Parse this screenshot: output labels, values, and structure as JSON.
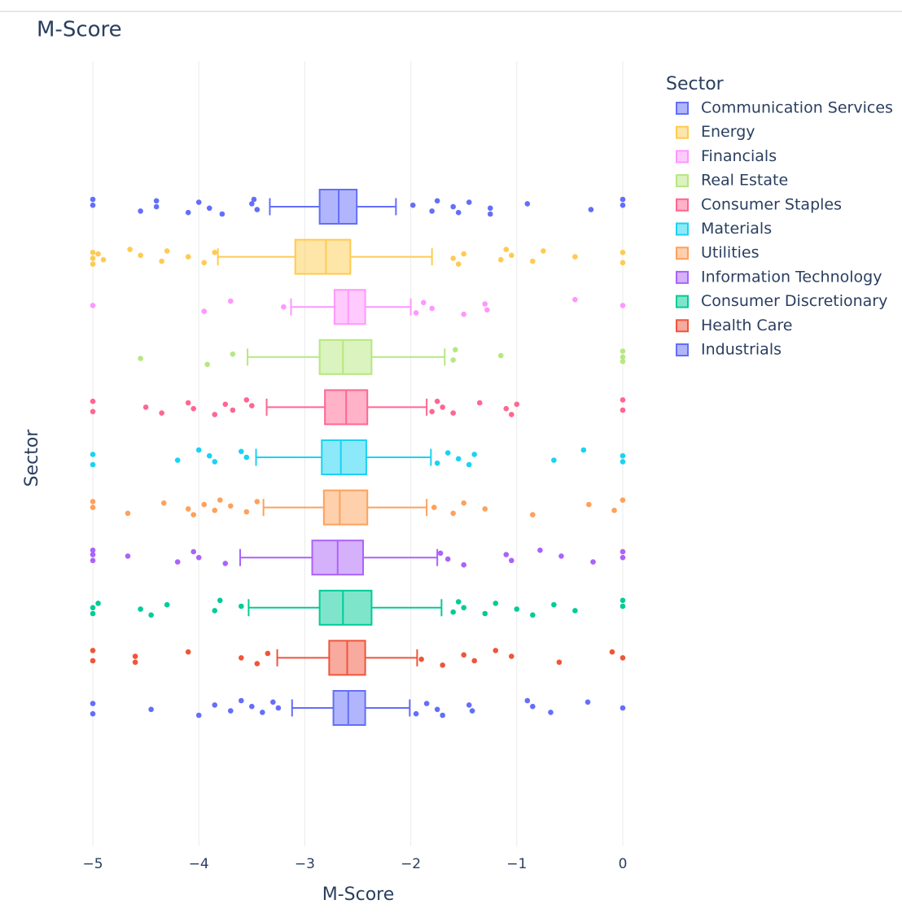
{
  "chart_data": {
    "type": "box",
    "orientation": "h",
    "title": "M-Score",
    "xlabel": "M-Score",
    "ylabel": "Sector",
    "legend_title": "Sector",
    "legend": "right",
    "xlim": [
      -5.2,
      0.1
    ],
    "xticks": [
      {
        "value": -5,
        "label": "−5"
      },
      {
        "value": -4,
        "label": "−4"
      },
      {
        "value": -3,
        "label": "−3"
      },
      {
        "value": -2,
        "label": "−2"
      },
      {
        "value": -1,
        "label": "−1"
      },
      0
    ],
    "grid": true,
    "series": [
      {
        "name": "Communication Services",
        "color": "#636efa",
        "lowerfence": -3.33,
        "q1": -2.86,
        "median": -2.68,
        "q3": -2.51,
        "upperfence": -2.14,
        "outliers": [
          -5,
          -5,
          -4.55,
          -4.4,
          -4.4,
          -4.1,
          -4.0,
          -3.9,
          -3.78,
          -3.5,
          -3.45,
          -3.48,
          -1.98,
          -1.8,
          -1.75,
          -1.6,
          -1.55,
          -1.45,
          -1.25,
          -1.25,
          -0.9,
          -0.3,
          0,
          0
        ]
      },
      {
        "name": "Energy",
        "color": "#FECB52",
        "lowerfence": -3.82,
        "q1": -3.09,
        "median": -2.8,
        "q3": -2.57,
        "upperfence": -1.8,
        "outliers": [
          -5,
          -5,
          -5,
          -4.95,
          -4.9,
          -4.65,
          -4.55,
          -4.35,
          -4.3,
          -4.1,
          -3.95,
          -3.85,
          -1.6,
          -1.55,
          -1.5,
          -1.15,
          -1.1,
          -1.05,
          -0.85,
          -0.75,
          -0.45,
          0,
          0
        ]
      },
      {
        "name": "Financials",
        "color": "#FF97FF",
        "lowerfence": -3.13,
        "q1": -2.72,
        "median": -2.59,
        "q3": -2.43,
        "upperfence": -2.0,
        "outliers": [
          -5,
          -3.95,
          -3.7,
          -3.2,
          -1.95,
          -1.88,
          -1.8,
          -1.5,
          -1.3,
          -1.28,
          -0.45,
          0
        ]
      },
      {
        "name": "Real Estate",
        "color": "#B6E880",
        "lowerfence": -3.54,
        "q1": -2.86,
        "median": -2.64,
        "q3": -2.37,
        "upperfence": -1.68,
        "outliers": [
          -4.55,
          -3.92,
          -3.68,
          -1.6,
          -1.58,
          -1.15,
          0,
          0,
          0
        ]
      },
      {
        "name": "Consumer Staples",
        "color": "#FF6692",
        "lowerfence": -3.36,
        "q1": -2.81,
        "median": -2.61,
        "q3": -2.41,
        "upperfence": -1.85,
        "outliers": [
          -5,
          -5,
          -4.5,
          -4.35,
          -4.1,
          -4.05,
          -3.85,
          -3.75,
          -3.68,
          -3.55,
          -3.5,
          -1.8,
          -1.75,
          -1.7,
          -1.6,
          -1.35,
          -1.1,
          -1.05,
          -1.0,
          0,
          0
        ]
      },
      {
        "name": "Materials",
        "color": "#19d3f3",
        "lowerfence": -3.46,
        "q1": -2.84,
        "median": -2.66,
        "q3": -2.42,
        "upperfence": -1.81,
        "outliers": [
          -5,
          -5,
          -4.2,
          -4.0,
          -3.9,
          -3.85,
          -3.6,
          -3.55,
          -1.75,
          -1.65,
          -1.55,
          -1.45,
          -1.4,
          -0.65,
          -0.37,
          0,
          0
        ]
      },
      {
        "name": "Utilities",
        "color": "#FFA15A",
        "lowerfence": -3.39,
        "q1": -2.82,
        "median": -2.67,
        "q3": -2.41,
        "upperfence": -1.85,
        "outliers": [
          -5,
          -5,
          -4.67,
          -4.33,
          -4.1,
          -4.05,
          -3.95,
          -3.85,
          -3.8,
          -3.7,
          -3.55,
          -3.45,
          -1.78,
          -1.6,
          -1.5,
          -1.3,
          -0.85,
          -0.32,
          -0.08,
          0
        ]
      },
      {
        "name": "Information Technology",
        "color": "#ab63fa",
        "lowerfence": -3.61,
        "q1": -2.93,
        "median": -2.69,
        "q3": -2.45,
        "upperfence": -1.75,
        "outliers": [
          -5,
          -5,
          -5,
          -4.67,
          -4.2,
          -4.05,
          -4.0,
          -3.75,
          -1.72,
          -1.65,
          -1.5,
          -1.1,
          -1.05,
          -0.78,
          -0.58,
          -0.28,
          0,
          0
        ]
      },
      {
        "name": "Consumer Discretionary",
        "color": "#00cc96",
        "lowerfence": -3.53,
        "q1": -2.86,
        "median": -2.64,
        "q3": -2.37,
        "upperfence": -1.71,
        "outliers": [
          -5,
          -5,
          -4.95,
          -4.55,
          -4.45,
          -4.3,
          -3.85,
          -3.8,
          -3.6,
          -1.6,
          -1.55,
          -1.5,
          -1.3,
          -1.2,
          -1.0,
          -0.85,
          -0.65,
          -0.45,
          0,
          0
        ]
      },
      {
        "name": "Health Care",
        "color": "#EF553B",
        "lowerfence": -3.26,
        "q1": -2.77,
        "median": -2.6,
        "q3": -2.43,
        "upperfence": -1.94,
        "outliers": [
          -5,
          -5,
          -4.6,
          -4.6,
          -4.1,
          -3.6,
          -3.45,
          -3.35,
          -1.9,
          -1.7,
          -1.5,
          -1.4,
          -1.2,
          -1.05,
          -0.6,
          -0.1,
          0
        ]
      },
      {
        "name": "Industrials",
        "color": "#636efa",
        "lowerfence": -3.12,
        "q1": -2.73,
        "median": -2.59,
        "q3": -2.43,
        "upperfence": -2.01,
        "outliers": [
          -5,
          -5,
          -4.45,
          -4.0,
          -3.85,
          -3.7,
          -3.6,
          -3.5,
          -3.4,
          -3.3,
          -3.25,
          -1.95,
          -1.85,
          -1.75,
          -1.7,
          -1.45,
          -1.42,
          -0.9,
          -0.85,
          -0.68,
          -0.33,
          0
        ]
      }
    ]
  }
}
